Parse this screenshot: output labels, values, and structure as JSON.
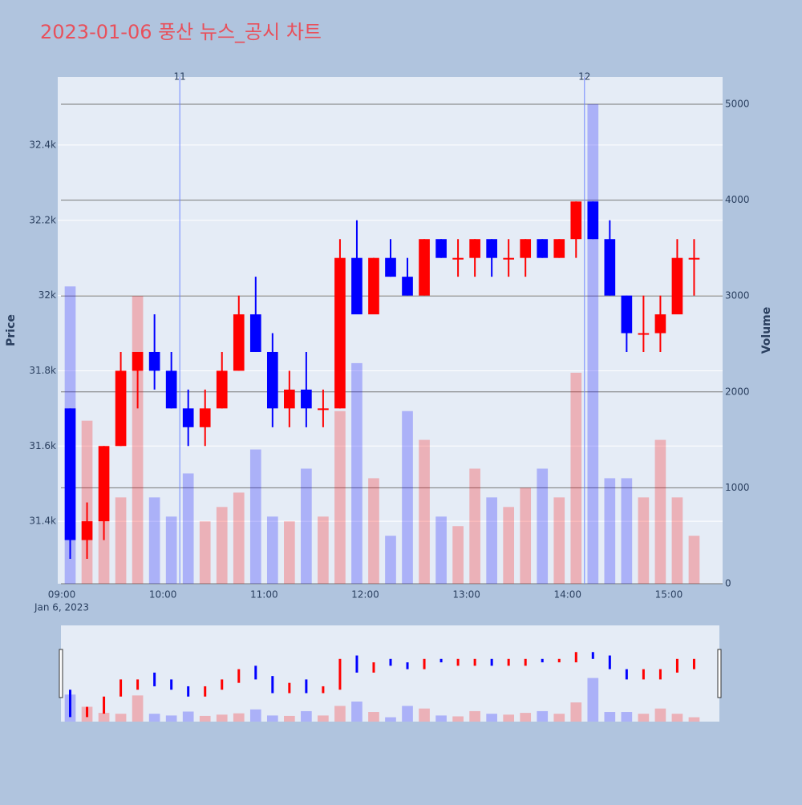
{
  "chart_data": {
    "type": "candlestick",
    "title": "2023-01-06 풍산 뉴스_공시 차트",
    "x": [
      "09:00",
      "09:10",
      "09:20",
      "09:30",
      "09:40",
      "09:50",
      "10:00",
      "10:10",
      "10:20",
      "10:30",
      "10:40",
      "10:50",
      "11:00",
      "11:10",
      "11:20",
      "11:30",
      "11:40",
      "11:50",
      "12:00",
      "12:10",
      "12:20",
      "12:30",
      "12:40",
      "12:50",
      "13:00",
      "13:10",
      "13:20",
      "13:30",
      "13:40",
      "13:50",
      "14:00",
      "14:10",
      "14:20",
      "14:30",
      "14:40",
      "14:50",
      "15:00",
      "15:10"
    ],
    "open": [
      31700,
      31350,
      31400,
      31600,
      31800,
      31850,
      31800,
      31700,
      31650,
      31700,
      31800,
      31950,
      31850,
      31700,
      31750,
      31700,
      31700,
      32100,
      31950,
      32100,
      32050,
      32000,
      32150,
      32100,
      32100,
      32150,
      32100,
      32100,
      32150,
      32100,
      32150,
      32250,
      32150,
      32000,
      31900,
      31900,
      31950,
      32100
    ],
    "high": [
      31700,
      31450,
      31600,
      31850,
      31850,
      31950,
      31850,
      31750,
      31750,
      31850,
      32000,
      32050,
      31900,
      31800,
      31850,
      31750,
      32150,
      32200,
      32100,
      32150,
      32100,
      32150,
      32150,
      32150,
      32150,
      32150,
      32150,
      32150,
      32150,
      32150,
      32250,
      32250,
      32200,
      32000,
      32000,
      32000,
      32150,
      32150
    ],
    "low": [
      31300,
      31300,
      31350,
      31600,
      31700,
      31750,
      31700,
      31600,
      31600,
      31700,
      31800,
      31850,
      31650,
      31650,
      31650,
      31650,
      31700,
      31950,
      31950,
      32050,
      32000,
      32000,
      32100,
      32050,
      32050,
      32050,
      32050,
      32050,
      32100,
      32100,
      32100,
      32150,
      32000,
      31850,
      31850,
      31850,
      31950,
      32000
    ],
    "close": [
      31350,
      31400,
      31600,
      31800,
      31850,
      31800,
      31700,
      31650,
      31700,
      31800,
      31950,
      31850,
      31700,
      31750,
      31700,
      31700,
      32100,
      31950,
      32100,
      32050,
      32000,
      32150,
      32100,
      32100,
      32150,
      32100,
      32100,
      32150,
      32100,
      32150,
      32250,
      32150,
      32000,
      31900,
      31900,
      31950,
      32100,
      32100
    ],
    "volume": [
      3100,
      1700,
      1000,
      900,
      3000,
      900,
      700,
      1150,
      650,
      800,
      950,
      1400,
      700,
      650,
      1200,
      700,
      1800,
      2300,
      1100,
      500,
      1800,
      1500,
      700,
      600,
      1200,
      900,
      800,
      1000,
      1200,
      900,
      2200,
      5000,
      1100,
      1100,
      900,
      1500,
      900,
      500
    ],
    "increasing_color": "#ff0000",
    "decreasing_color": "#0000ff",
    "xlim": [
      "09:00",
      "15:30"
    ],
    "xticks": [
      "09:00",
      "10:00",
      "11:00",
      "12:00",
      "13:00",
      "14:00",
      "15:00"
    ],
    "x_sublabel": "Jan 6, 2023",
    "ylim": [
      31234,
      32581
    ],
    "yticks": [
      {
        "value": 31400,
        "label": "31.4k"
      },
      {
        "value": 31600,
        "label": "31.6k"
      },
      {
        "value": 31800,
        "label": "31.8k"
      },
      {
        "value": 32000,
        "label": "32k"
      },
      {
        "value": 32200,
        "label": "32.2k"
      },
      {
        "value": 32400,
        "label": "32.4k"
      }
    ],
    "y2lim": [
      0,
      5284
    ],
    "y2ticks": [
      0,
      1000,
      2000,
      3000,
      4000,
      5000
    ],
    "ylabel": "Price",
    "y2label": "Volume",
    "annotations": [
      {
        "x": "10:10",
        "label": "11"
      },
      {
        "x": "14:10",
        "label": "12"
      }
    ],
    "grid": true,
    "range_slider": true
  }
}
